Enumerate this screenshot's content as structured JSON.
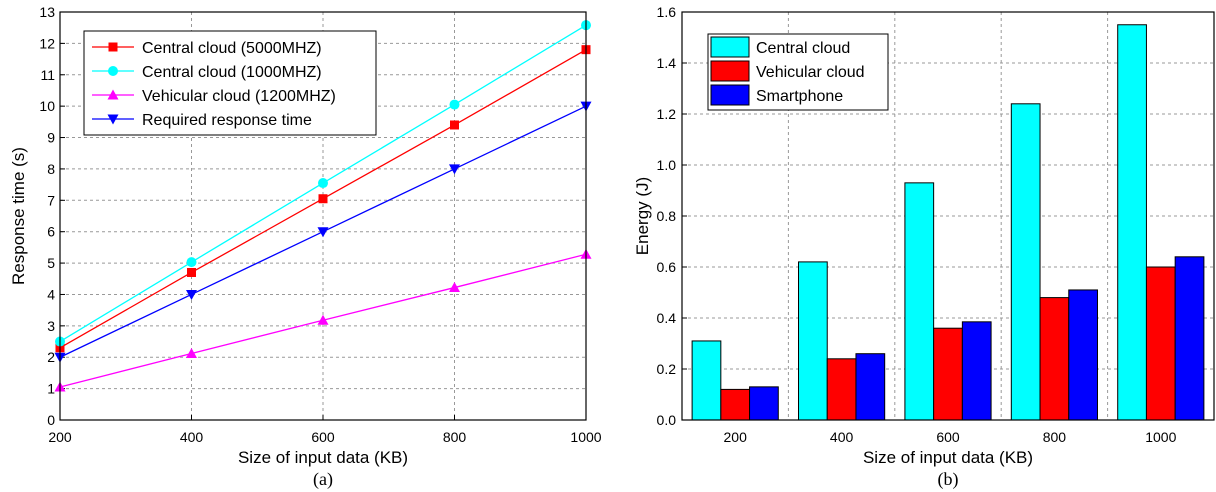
{
  "chart_data": [
    {
      "type": "line",
      "caption": "(a)",
      "xlabel": "Size of input data (KB)",
      "ylabel": "Response time (s)",
      "xlim": [
        200,
        1000
      ],
      "ylim": [
        0,
        13
      ],
      "x": [
        200,
        400,
        600,
        800,
        1000
      ],
      "xticks": [
        "200",
        "400",
        "600",
        "800",
        "1000"
      ],
      "yticks": [
        "0",
        "1",
        "2",
        "3",
        "4",
        "5",
        "6",
        "7",
        "8",
        "9",
        "10",
        "11",
        "12",
        "13"
      ],
      "grid": true,
      "legend": "top-left",
      "series": [
        {
          "name": "Central cloud (5000MHZ)",
          "values": [
            2.3,
            4.7,
            7.05,
            9.4,
            11.8
          ],
          "color": "#ff0000",
          "marker": "square"
        },
        {
          "name": "Central cloud (1000MHZ)",
          "values": [
            2.5,
            5.03,
            7.55,
            10.05,
            12.58
          ],
          "color": "#00ffff",
          "marker": "circle"
        },
        {
          "name": "Vehicular cloud (1200MHZ)",
          "values": [
            1.05,
            2.12,
            3.18,
            4.22,
            5.28
          ],
          "color": "#ff00ff",
          "marker": "triangle-up"
        },
        {
          "name": "Required response time",
          "values": [
            2.0,
            4.0,
            6.0,
            8.0,
            10.0
          ],
          "color": "#0000ff",
          "marker": "triangle-down"
        }
      ]
    },
    {
      "type": "bar",
      "caption": "(b)",
      "xlabel": "Size of input data (KB)",
      "ylabel": "Energy (J)",
      "ylim": [
        0,
        1.6
      ],
      "categories": [
        "200",
        "400",
        "600",
        "800",
        "1000"
      ],
      "yticks": [
        "0.0",
        "0.2",
        "0.4",
        "0.6",
        "0.8",
        "1.0",
        "1.2",
        "1.4",
        "1.6"
      ],
      "grid": true,
      "legend": "top-left",
      "series": [
        {
          "name": "Central cloud",
          "values": [
            0.31,
            0.62,
            0.93,
            1.24,
            1.55
          ],
          "color": "#00ffff"
        },
        {
          "name": "Vehicular cloud",
          "values": [
            0.12,
            0.24,
            0.36,
            0.48,
            0.6
          ],
          "color": "#ff0000"
        },
        {
          "name": "Smartphone",
          "values": [
            0.13,
            0.26,
            0.385,
            0.51,
            0.64
          ],
          "color": "#0000ff"
        }
      ]
    }
  ]
}
